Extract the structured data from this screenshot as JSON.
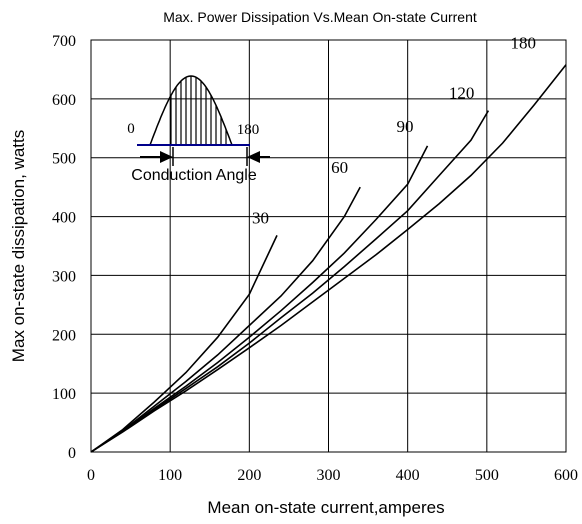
{
  "chart_data": {
    "type": "line",
    "title": "Max. Power Dissipation Vs.Mean On-state Current",
    "xlabel": "Mean on-state current,amperes",
    "ylabel": "Max on-state dissipation, watts",
    "xlim": [
      0,
      600
    ],
    "ylim": [
      0,
      700
    ],
    "xticks": [
      0,
      100,
      200,
      300,
      400,
      500,
      600
    ],
    "yticks": [
      0,
      100,
      200,
      300,
      400,
      500,
      600,
      700
    ],
    "grid": true,
    "series": [
      {
        "name": "30",
        "points": [
          [
            0,
            0
          ],
          [
            40,
            38
          ],
          [
            80,
            85
          ],
          [
            120,
            135
          ],
          [
            160,
            195
          ],
          [
            200,
            268
          ],
          [
            235,
            368
          ]
        ]
      },
      {
        "name": "60",
        "points": [
          [
            0,
            0
          ],
          [
            40,
            36
          ],
          [
            80,
            78
          ],
          [
            120,
            120
          ],
          [
            160,
            165
          ],
          [
            200,
            215
          ],
          [
            240,
            265
          ],
          [
            280,
            325
          ],
          [
            320,
            400
          ],
          [
            340,
            450
          ]
        ]
      },
      {
        "name": "90",
        "points": [
          [
            0,
            0
          ],
          [
            40,
            35
          ],
          [
            80,
            74
          ],
          [
            120,
            112
          ],
          [
            160,
            152
          ],
          [
            200,
            195
          ],
          [
            240,
            240
          ],
          [
            280,
            288
          ],
          [
            320,
            338
          ],
          [
            360,
            395
          ],
          [
            400,
            455
          ],
          [
            425,
            520
          ]
        ]
      },
      {
        "name": "120",
        "points": [
          [
            0,
            0
          ],
          [
            40,
            35
          ],
          [
            80,
            72
          ],
          [
            120,
            108
          ],
          [
            160,
            145
          ],
          [
            200,
            185
          ],
          [
            240,
            228
          ],
          [
            280,
            270
          ],
          [
            320,
            315
          ],
          [
            360,
            362
          ],
          [
            400,
            410
          ],
          [
            440,
            470
          ],
          [
            480,
            530
          ],
          [
            502,
            580
          ]
        ]
      },
      {
        "name": "180",
        "points": [
          [
            0,
            0
          ],
          [
            40,
            34
          ],
          [
            80,
            70
          ],
          [
            120,
            104
          ],
          [
            160,
            140
          ],
          [
            200,
            177
          ],
          [
            240,
            215
          ],
          [
            280,
            255
          ],
          [
            320,
            295
          ],
          [
            360,
            335
          ],
          [
            400,
            378
          ],
          [
            440,
            422
          ],
          [
            480,
            470
          ],
          [
            520,
            525
          ],
          [
            560,
            590
          ],
          [
            600,
            658
          ]
        ]
      }
    ],
    "inset": {
      "start_label": "0",
      "end_label": "180",
      "caption": "Conduction Angle"
    }
  }
}
